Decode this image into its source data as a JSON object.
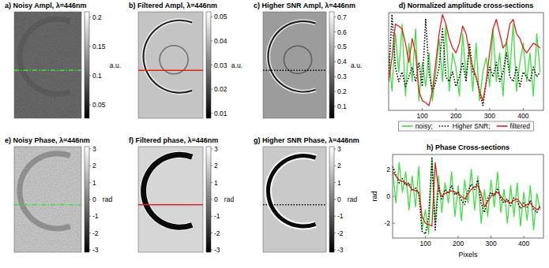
{
  "chart_data": [
    {
      "type": "image",
      "title": "a) Noisy Ampl, λ=446nm",
      "colorbar_lim": [
        0.027,
        0.209
      ],
      "colorbar_ticks": [
        0.05,
        0.1,
        0.15,
        0.2
      ],
      "colorbar_label": "a.u.",
      "color": "#3ee03e",
      "line_style": "dashdot"
    },
    {
      "type": "image",
      "title": "b) Filtered Ampl, λ=446nm",
      "colorbar_lim": [
        0.008,
        0.052
      ],
      "colorbar_ticks": [
        0.01,
        0.02,
        0.03,
        0.04,
        0.05
      ],
      "colorbar_label": "a.u.",
      "color": "#e8211e",
      "line_style": "solid"
    },
    {
      "type": "image",
      "title": "c) Higher SNR Ampl, λ=446nm",
      "colorbar_lim": [
        0.021,
        0.735
      ],
      "colorbar_ticks": [
        0.1,
        0.2,
        0.3,
        0.4,
        0.5,
        0.6,
        0.7
      ],
      "colorbar_label": "a.u.",
      "color": "#000000",
      "line_style": "dotted"
    },
    {
      "type": "line",
      "title": "d) Normalized amplitude cross-sections",
      "x": [
        0,
        10,
        20,
        30,
        40,
        50,
        60,
        70,
        80,
        90,
        100,
        110,
        120,
        130,
        140,
        150,
        160,
        170,
        180,
        190,
        200,
        210,
        220,
        230,
        240,
        250,
        260,
        270,
        280,
        290,
        300,
        310,
        320,
        330,
        340,
        350,
        360,
        370,
        380,
        390,
        400,
        410,
        420,
        430,
        440,
        450
      ],
      "xlim": [
        0,
        460
      ],
      "xticks": [
        100,
        200,
        300,
        400
      ],
      "ylim": [
        0,
        1.02
      ],
      "tick_labels": "x",
      "legend": "bottom",
      "series": [
        {
          "name": "noisy;",
          "color": "#3ee03e",
          "line_style": "solid",
          "values": [
            0.6,
            0.2,
            0.8,
            0.4,
            0.9,
            0.15,
            0.7,
            0.3,
            0.85,
            0.1,
            0.5,
            0.25,
            0.6,
            0.1,
            0.4,
            0.75,
            0.3,
            0.9,
            0.2,
            0.6,
            0.45,
            0.15,
            0.8,
            0.35,
            0.65,
            0.2,
            0.7,
            0.1,
            0.4,
            0.55,
            0.25,
            0.85,
            0.3,
            0.6,
            0.15,
            0.75,
            0.4,
            0.9,
            0.2,
            0.5,
            0.7,
            0.3,
            0.6,
            0.15,
            0.8,
            0.4
          ]
        },
        {
          "name": "Higher SNR;",
          "color": "#000000",
          "line_style": "dotted",
          "values": [
            0.35,
            1.0,
            0.45,
            0.3,
            0.4,
            0.25,
            0.35,
            0.45,
            0.3,
            0.5,
            0.25,
            0.95,
            0.4,
            0.2,
            0.3,
            0.45,
            0.85,
            0.35,
            0.3,
            0.4,
            0.25,
            0.35,
            0.5,
            0.3,
            0.7,
            0.4,
            0.35,
            0.2,
            0.05,
            0.3,
            0.45,
            0.35,
            0.5,
            0.3,
            0.4,
            0.6,
            0.35,
            0.3,
            0.45,
            0.25,
            0.4,
            0.35,
            0.3,
            0.45,
            0.35,
            0.4
          ]
        },
        {
          "name": "filtered",
          "color": "#e8211e",
          "line_style": "solid",
          "values": [
            0.3,
            0.55,
            0.9,
            0.88,
            0.85,
            0.7,
            0.5,
            0.75,
            0.6,
            0.2,
            0.1,
            0.08,
            0.05,
            0.2,
            0.5,
            0.8,
            1.0,
            0.9,
            0.75,
            0.65,
            0.6,
            0.7,
            0.88,
            0.8,
            0.6,
            0.45,
            0.35,
            0.2,
            0.1,
            0.3,
            0.6,
            0.85,
            0.95,
            0.8,
            0.65,
            0.7,
            0.9,
            0.95,
            0.8,
            0.75,
            0.65,
            0.6,
            0.65,
            0.7,
            0.68,
            0.65
          ]
        }
      ]
    },
    {
      "type": "image",
      "title": "e) Noisy Phase, λ=446nm",
      "colorbar_lim": [
        -3.14,
        3.14
      ],
      "colorbar_ticks": [
        -3,
        -2,
        -1,
        0,
        1,
        2,
        3
      ],
      "colorbar_label": "rad",
      "color": "#3ee03e",
      "line_style": "dashdot"
    },
    {
      "type": "image",
      "title": "f) Filtered phase, λ=446nm",
      "colorbar_lim": [
        -3.14,
        3.14
      ],
      "colorbar_ticks": [
        -3,
        -2,
        -1,
        0,
        1,
        2,
        3
      ],
      "colorbar_label": "rad",
      "color": "#e8211e",
      "line_style": "solid"
    },
    {
      "type": "image",
      "title": "g) Higher SNR Phase, λ=446nm",
      "colorbar_lim": [
        -3.14,
        3.14
      ],
      "colorbar_ticks": [
        -3,
        -2,
        -1,
        0,
        1,
        2,
        3
      ],
      "colorbar_label": "rad",
      "color": "#000000",
      "line_style": "dotted"
    },
    {
      "type": "line",
      "title": "h) Phase Cross-sections",
      "xlabel": "Pixels",
      "ylabel": "rad",
      "x": [
        0,
        10,
        20,
        30,
        40,
        50,
        60,
        70,
        80,
        90,
        100,
        110,
        120,
        130,
        140,
        150,
        160,
        170,
        180,
        190,
        200,
        210,
        220,
        230,
        240,
        250,
        260,
        270,
        280,
        290,
        300,
        310,
        320,
        330,
        340,
        350,
        360,
        370,
        380,
        390,
        400,
        410,
        420,
        430,
        440,
        450
      ],
      "xlim": [
        0,
        460
      ],
      "xticks": [
        100,
        200,
        300,
        400
      ],
      "ylim": [
        -3.1,
        3.1
      ],
      "yticks": [
        -2,
        0,
        2
      ],
      "series": [
        {
          "color": "#3ee03e",
          "line_style": "solid",
          "values": [
            2.0,
            -0.5,
            2.5,
            0.3,
            1.8,
            -1.0,
            1.5,
            -0.8,
            2.2,
            -2.5,
            -1.0,
            -2.8,
            2.9,
            -2.0,
            1.5,
            -1.2,
            1.0,
            -0.5,
            1.8,
            -1.5,
            0.8,
            -1.8,
            1.2,
            -0.5,
            2.0,
            -1.0,
            1.5,
            -2.0,
            0.5,
            -1.5,
            1.2,
            -0.8,
            1.8,
            -1.2,
            0.5,
            -2.0,
            0.8,
            -1.5,
            1.0,
            -2.2,
            0.3,
            -1.8,
            0.8,
            -2.5,
            0.2,
            -1.0
          ]
        },
        {
          "color": "#000000",
          "line_style": "dotted",
          "values": [
            2.2,
            1.6,
            1.0,
            1.3,
            0.8,
            1.0,
            0.4,
            0.6,
            0.2,
            -2.6,
            -2.8,
            -1.5,
            2.8,
            -2.5,
            0.8,
            -0.2,
            0.5,
            0.2,
            0.8,
            0.1,
            0.3,
            -0.3,
            -0.6,
            0.4,
            0.9,
            0.5,
            1.2,
            -0.5,
            -1.2,
            -0.2,
            0.3,
            0.0,
            0.6,
            -0.2,
            -0.5,
            -0.2,
            -0.7,
            -0.1,
            -0.4,
            -0.9,
            -0.5,
            -0.8,
            -0.3,
            -1.0,
            -1.2,
            -0.7
          ]
        },
        {
          "color": "#e8211e",
          "line_style": "solid",
          "values": [
            1.8,
            1.5,
            1.2,
            1.1,
            1.0,
            0.8,
            0.5,
            0.4,
            0.3,
            -1.5,
            -2.0,
            -2.1,
            -2.2,
            2.5,
            0.5,
            0.0,
            0.2,
            0.3,
            0.4,
            0.3,
            0.2,
            0.0,
            -0.2,
            0.2,
            0.5,
            0.7,
            0.8,
            0.2,
            -0.8,
            -0.4,
            0.0,
            0.2,
            0.3,
            0.0,
            -0.3,
            -0.4,
            -0.5,
            -0.3,
            -0.2,
            -0.5,
            -0.8,
            -0.6,
            -0.5,
            -0.8,
            -1.0,
            -0.8
          ]
        }
      ]
    }
  ]
}
